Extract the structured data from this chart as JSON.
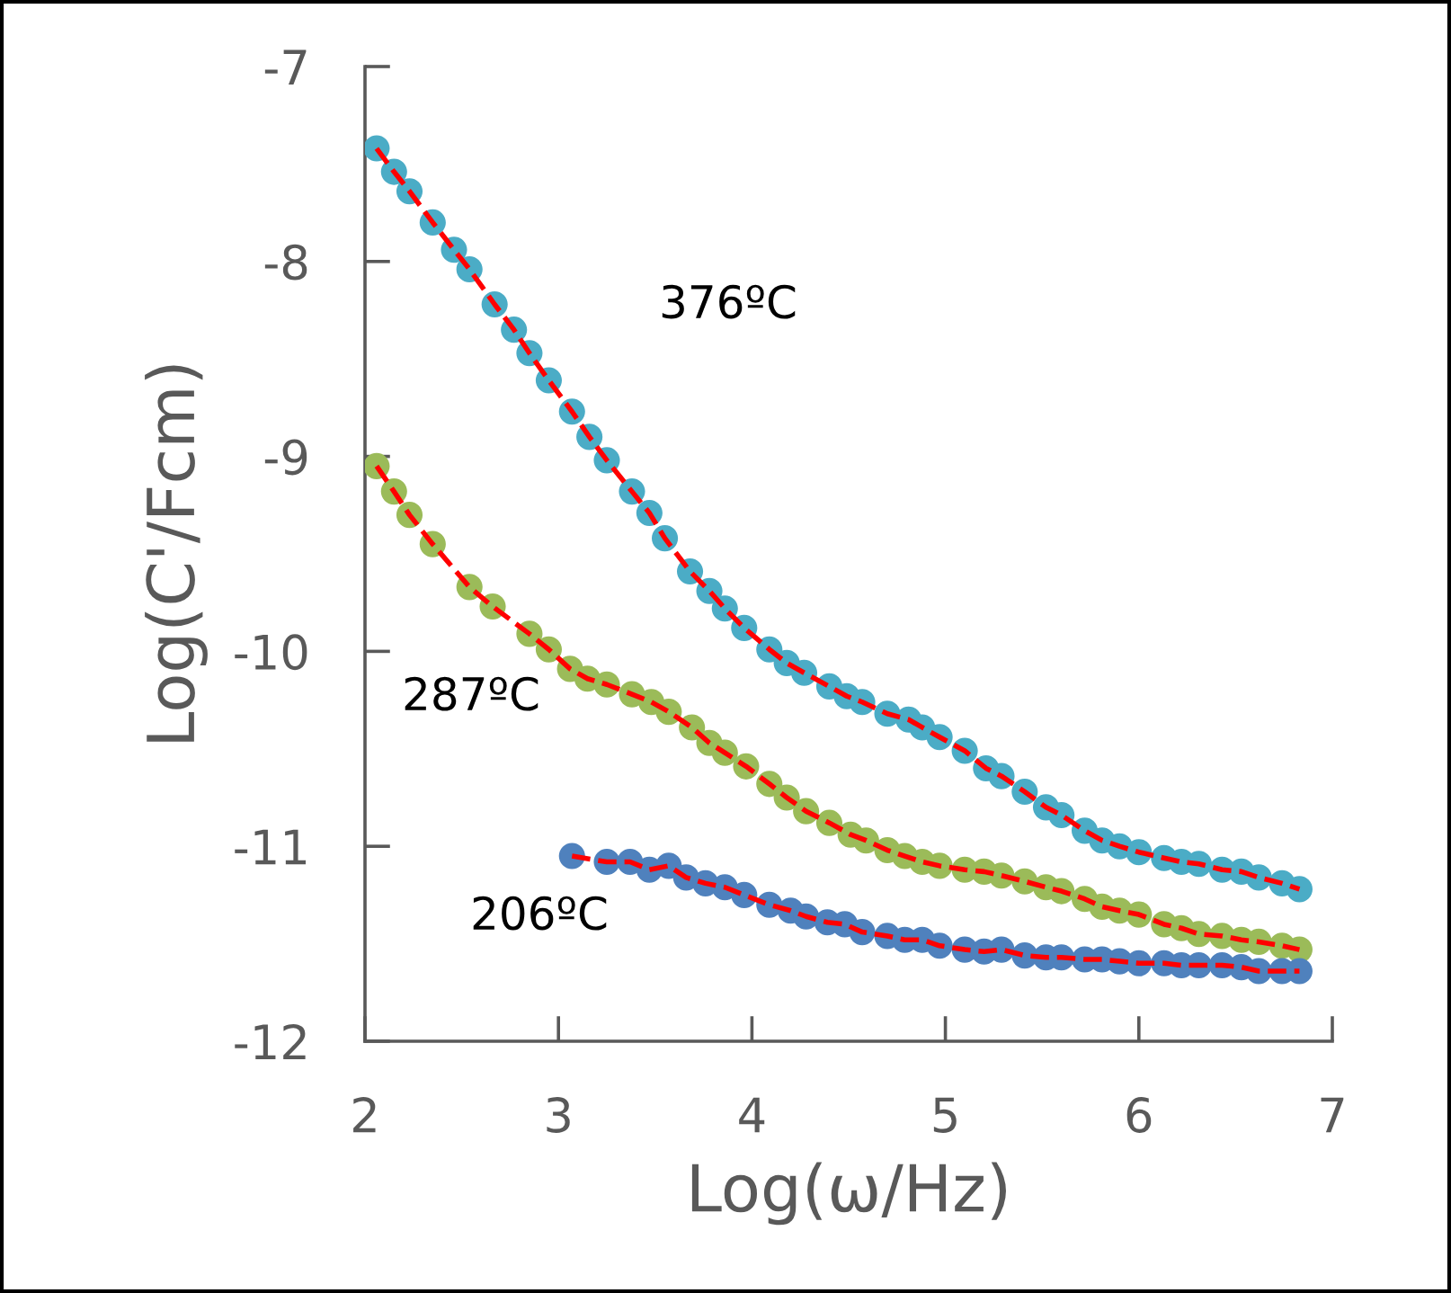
{
  "chart_data": {
    "type": "scatter",
    "xlabel": "Log(ω/Hz)",
    "ylabel": "Log(C'/Fcm)",
    "xlim": [
      2,
      7
    ],
    "ylim": [
      -12,
      -7
    ],
    "xticks": [
      2,
      3,
      4,
      5,
      6,
      7
    ],
    "yticks": [
      -12,
      -11,
      -10,
      -9,
      -8,
      -7
    ],
    "grid": false,
    "marker": "circle",
    "series": [
      {
        "type": "line",
        "color": "#ff0000",
        "line_style": "dashed",
        "marker": "none",
        "x": [
          2.06,
          2.15,
          2.23,
          2.35,
          2.46,
          2.54,
          2.67,
          2.77,
          2.85,
          2.95,
          3.07,
          3.16,
          3.25,
          3.38,
          3.47,
          3.55,
          3.68,
          3.78,
          3.86,
          3.96,
          4.09,
          4.18,
          4.27,
          4.4,
          4.49,
          4.57,
          4.7,
          4.81,
          4.88,
          4.97,
          5.1,
          5.21,
          5.29,
          5.41,
          5.52,
          5.6,
          5.72,
          5.81,
          5.9,
          6.0,
          6.13,
          6.22,
          6.31,
          6.43,
          6.53,
          6.62,
          6.74,
          6.83
        ],
        "values": [
          -7.42,
          -7.54,
          -7.64,
          -7.8,
          -7.94,
          -8.04,
          -8.22,
          -8.35,
          -8.47,
          -8.61,
          -8.77,
          -8.9,
          -9.02,
          -9.18,
          -9.29,
          -9.42,
          -9.59,
          -9.69,
          -9.78,
          -9.88,
          -9.99,
          -10.06,
          -10.11,
          -10.18,
          -10.23,
          -10.26,
          -10.32,
          -10.35,
          -10.39,
          -10.44,
          -10.51,
          -10.6,
          -10.64,
          -10.72,
          -10.8,
          -10.84,
          -10.92,
          -10.97,
          -11.0,
          -11.03,
          -11.06,
          -11.08,
          -11.09,
          -11.12,
          -11.13,
          -11.16,
          -11.19,
          -11.22
        ]
      },
      {
        "color": "#4bacc6",
        "x": [
          2.06,
          2.15,
          2.23,
          2.35,
          2.46,
          2.54,
          2.67,
          2.77,
          2.85,
          2.95,
          3.07,
          3.16,
          3.25,
          3.38,
          3.47,
          3.55,
          3.68,
          3.78,
          3.86,
          3.96,
          4.09,
          4.18,
          4.27,
          4.4,
          4.49,
          4.57,
          4.7,
          4.81,
          4.88,
          4.97,
          5.1,
          5.21,
          5.29,
          5.41,
          5.52,
          5.6,
          5.72,
          5.81,
          5.9,
          6.0,
          6.13,
          6.22,
          6.31,
          6.43,
          6.53,
          6.62,
          6.74,
          6.83
        ],
        "values": [
          -7.42,
          -7.54,
          -7.64,
          -7.8,
          -7.94,
          -8.04,
          -8.22,
          -8.35,
          -8.47,
          -8.61,
          -8.77,
          -8.9,
          -9.02,
          -9.18,
          -9.29,
          -9.42,
          -9.59,
          -9.69,
          -9.78,
          -9.88,
          -9.99,
          -10.06,
          -10.11,
          -10.18,
          -10.23,
          -10.26,
          -10.32,
          -10.35,
          -10.39,
          -10.44,
          -10.51,
          -10.6,
          -10.64,
          -10.72,
          -10.8,
          -10.84,
          -10.92,
          -10.97,
          -11.0,
          -11.03,
          -11.06,
          -11.08,
          -11.09,
          -11.12,
          -11.13,
          -11.16,
          -11.19,
          -11.22
        ]
      },
      {
        "type": "line",
        "color": "#ff0000",
        "line_style": "dashed",
        "marker": "none",
        "x": [
          2.06,
          2.15,
          2.23,
          2.35,
          2.54,
          2.66,
          2.85,
          2.95,
          3.06,
          3.15,
          3.25,
          3.38,
          3.48,
          3.57,
          3.69,
          3.78,
          3.86,
          3.97,
          4.09,
          4.18,
          4.28,
          4.4,
          4.51,
          4.59,
          4.7,
          4.79,
          4.88,
          4.97,
          5.1,
          5.2,
          5.29,
          5.41,
          5.52,
          5.6,
          5.72,
          5.81,
          5.9,
          6.0,
          6.13,
          6.22,
          6.31,
          6.43,
          6.53,
          6.62,
          6.74,
          6.83
        ],
        "values": [
          -9.05,
          -9.18,
          -9.3,
          -9.45,
          -9.67,
          -9.77,
          -9.91,
          -9.99,
          -10.09,
          -10.14,
          -10.17,
          -10.22,
          -10.26,
          -10.31,
          -10.39,
          -10.47,
          -10.52,
          -10.59,
          -10.68,
          -10.75,
          -10.82,
          -10.88,
          -10.94,
          -10.97,
          -11.02,
          -11.05,
          -11.08,
          -11.1,
          -11.12,
          -11.13,
          -11.15,
          -11.18,
          -11.21,
          -11.23,
          -11.27,
          -11.31,
          -11.33,
          -11.35,
          -11.4,
          -11.42,
          -11.45,
          -11.46,
          -11.48,
          -11.49,
          -11.51,
          -11.53
        ]
      },
      {
        "color": "#9bbb59",
        "x": [
          2.06,
          2.15,
          2.23,
          2.35,
          2.54,
          2.66,
          2.85,
          2.95,
          3.06,
          3.15,
          3.25,
          3.38,
          3.48,
          3.57,
          3.69,
          3.78,
          3.86,
          3.97,
          4.09,
          4.18,
          4.28,
          4.4,
          4.51,
          4.59,
          4.7,
          4.79,
          4.88,
          4.97,
          5.1,
          5.2,
          5.29,
          5.41,
          5.52,
          5.6,
          5.72,
          5.81,
          5.9,
          6.0,
          6.13,
          6.22,
          6.31,
          6.43,
          6.53,
          6.62,
          6.74,
          6.83
        ],
        "values": [
          -9.05,
          -9.18,
          -9.3,
          -9.45,
          -9.67,
          -9.77,
          -9.91,
          -9.99,
          -10.09,
          -10.14,
          -10.17,
          -10.22,
          -10.26,
          -10.31,
          -10.39,
          -10.47,
          -10.52,
          -10.59,
          -10.68,
          -10.75,
          -10.82,
          -10.88,
          -10.94,
          -10.97,
          -11.02,
          -11.05,
          -11.08,
          -11.1,
          -11.12,
          -11.13,
          -11.15,
          -11.18,
          -11.21,
          -11.23,
          -11.27,
          -11.31,
          -11.33,
          -11.35,
          -11.4,
          -11.42,
          -11.45,
          -11.46,
          -11.48,
          -11.49,
          -11.51,
          -11.53
        ]
      },
      {
        "type": "line",
        "color": "#ff0000",
        "line_style": "dashed",
        "marker": "none",
        "x": [
          3.07,
          3.25,
          3.37,
          3.47,
          3.57,
          3.66,
          3.76,
          3.86,
          3.96,
          4.09,
          4.2,
          4.28,
          4.39,
          4.48,
          4.57,
          4.7,
          4.79,
          4.88,
          4.97,
          5.1,
          5.2,
          5.29,
          5.41,
          5.52,
          5.6,
          5.72,
          5.81,
          5.9,
          6.0,
          6.13,
          6.22,
          6.31,
          6.43,
          6.53,
          6.62,
          6.74,
          6.83
        ],
        "values": [
          -11.05,
          -11.08,
          -11.08,
          -11.12,
          -11.1,
          -11.16,
          -11.19,
          -11.21,
          -11.25,
          -11.3,
          -11.33,
          -11.36,
          -11.39,
          -11.4,
          -11.44,
          -11.46,
          -11.48,
          -11.48,
          -11.51,
          -11.53,
          -11.54,
          -11.53,
          -11.56,
          -11.57,
          -11.57,
          -11.58,
          -11.58,
          -11.59,
          -11.6,
          -11.6,
          -11.61,
          -11.61,
          -11.61,
          -11.62,
          -11.64,
          -11.64,
          -11.64
        ]
      },
      {
        "color": "#4f81bd",
        "x": [
          3.07,
          3.25,
          3.37,
          3.47,
          3.57,
          3.66,
          3.76,
          3.86,
          3.96,
          4.09,
          4.2,
          4.28,
          4.39,
          4.48,
          4.57,
          4.7,
          4.79,
          4.88,
          4.97,
          5.1,
          5.2,
          5.29,
          5.41,
          5.52,
          5.6,
          5.72,
          5.81,
          5.9,
          6.0,
          6.13,
          6.22,
          6.31,
          6.43,
          6.53,
          6.62,
          6.74,
          6.83
        ],
        "values": [
          -11.05,
          -11.08,
          -11.08,
          -11.12,
          -11.1,
          -11.16,
          -11.19,
          -11.21,
          -11.25,
          -11.3,
          -11.33,
          -11.36,
          -11.39,
          -11.4,
          -11.44,
          -11.46,
          -11.48,
          -11.48,
          -11.51,
          -11.53,
          -11.54,
          -11.53,
          -11.56,
          -11.57,
          -11.57,
          -11.58,
          -11.58,
          -11.59,
          -11.6,
          -11.6,
          -11.61,
          -11.61,
          -11.61,
          -11.62,
          -11.64,
          -11.64,
          -11.64
        ]
      }
    ],
    "annotations": [
      "376ºC",
      "287ºC",
      "206ºC"
    ]
  }
}
